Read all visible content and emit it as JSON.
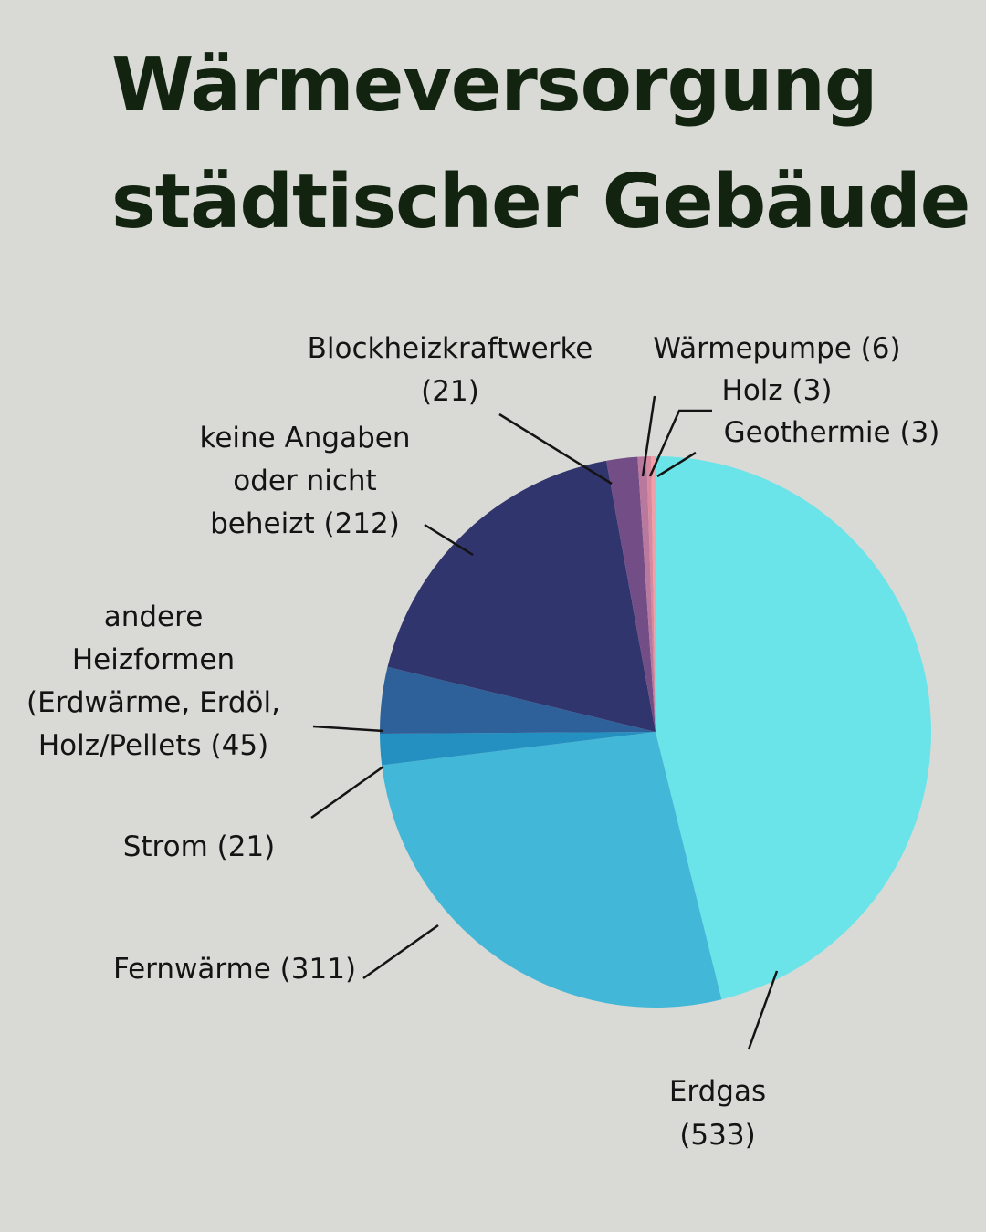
{
  "chart_data": {
    "type": "pie",
    "title": "Wärmeversorgung städtischer Gebäude",
    "title_lines": [
      "Wärmeversorgung",
      "städtischer Gebäude"
    ],
    "slices": [
      {
        "label": "Erdgas (533)",
        "label_lines": [
          "Erdgas",
          "(533)"
        ],
        "value": 533,
        "color": "#6ae4e9"
      },
      {
        "label": "Fernwärme (311)",
        "label_lines": [
          "Fernwärme (311)"
        ],
        "value": 311,
        "color": "#43b7d7"
      },
      {
        "label": "Strom (21)",
        "label_lines": [
          "Strom (21)"
        ],
        "value": 21,
        "color": "#2390c1"
      },
      {
        "label": "andere Heizformen (Erdwärme, Erdöl, Holz/Pellets (45)",
        "label_lines": [
          "andere",
          "Heizformen",
          "(Erdwärme, Erdöl,",
          "Holz/Pellets (45)"
        ],
        "value": 45,
        "color": "#2e6199"
      },
      {
        "label": "keine Angaben oder nicht beheizt (212)",
        "label_lines": [
          "keine Angaben",
          "oder nicht",
          "beheizt (212)"
        ],
        "value": 212,
        "color": "#30356e"
      },
      {
        "label": "Blockheizkraftwerke (21)",
        "label_lines": [
          "Blockheizkraftwerke",
          "(21)"
        ],
        "value": 21,
        "color": "#734d85"
      },
      {
        "label": "Wärmepumpe (6)",
        "label_lines": [
          "Wärmepumpe (6)"
        ],
        "value": 6,
        "color": "#b9799f"
      },
      {
        "label": "Holz (3)",
        "label_lines": [
          "Holz (3)"
        ],
        "value": 3,
        "color": "#d8899d"
      },
      {
        "label": "Geothermie (3)",
        "label_lines": [
          "Geothermie (3)"
        ],
        "value": 3,
        "color": "#f0a0a8"
      }
    ],
    "start_angle_deg": 0,
    "direction": "clockwise",
    "legend": "none",
    "labels": "outside-with-leader-lines"
  }
}
